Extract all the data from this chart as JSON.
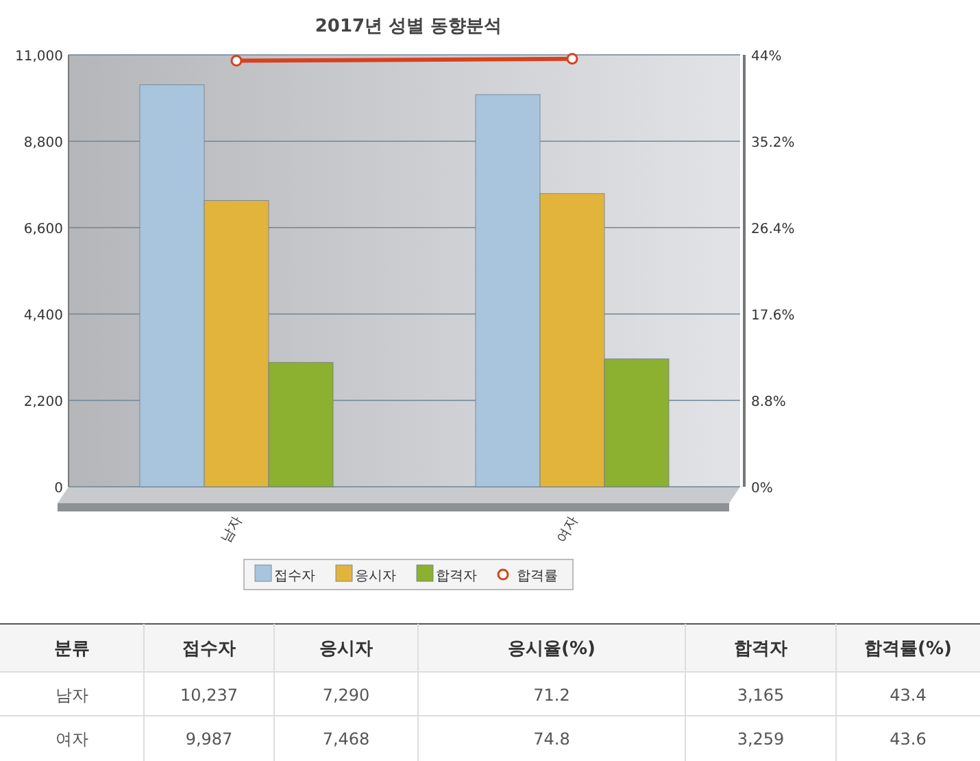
{
  "chart_data": [
    {
      "type": "bar",
      "title": "2017년 성별 동향분석",
      "categories": [
        "남자",
        "여자"
      ],
      "series": [
        {
          "name": "접수자",
          "color": "#a9c5dd",
          "values": [
            10237,
            9987
          ]
        },
        {
          "name": "응시자",
          "color": "#e2b43c",
          "values": [
            7290,
            7468
          ]
        },
        {
          "name": "합격자",
          "color": "#8cb030",
          "values": [
            3165,
            3259
          ]
        },
        {
          "name": "합격률",
          "type": "line",
          "axis": "y2",
          "color": "#d9401e",
          "values": [
            43.4,
            43.6
          ]
        }
      ],
      "ylim": [
        0,
        11000
      ],
      "yticks": [
        {
          "value": 0,
          "label": "0"
        },
        {
          "value": 2200,
          "label": "2,200"
        },
        {
          "value": 4400,
          "label": "4,400"
        },
        {
          "value": 6600,
          "label": "6,600"
        },
        {
          "value": 8800,
          "label": "8,800"
        },
        {
          "value": 11000,
          "label": "11,000"
        }
      ],
      "y2lim": [
        0,
        44
      ],
      "y2ticks": [
        {
          "value": 0,
          "label": "0%"
        },
        {
          "value": 8.8,
          "label": "8.8%"
        },
        {
          "value": 17.6,
          "label": "17.6%"
        },
        {
          "value": 26.4,
          "label": "26.4%"
        },
        {
          "value": 35.2,
          "label": "35.2%"
        },
        {
          "value": 44,
          "label": "44%"
        }
      ],
      "grid": "y",
      "legend": "bottom",
      "marker": "circle"
    },
    {
      "type": "other",
      "ylabel": "분류",
      "categories": [
        "남자",
        "여자"
      ],
      "data_labels": true,
      "series": [
        {
          "name": "접수자",
          "values": [
            10237,
            9987
          ],
          "value_labels": [
            "10,237",
            "9,987"
          ]
        },
        {
          "name": "응시자",
          "values": [
            7290,
            7468
          ],
          "value_labels": [
            "7,290",
            "7,468"
          ]
        },
        {
          "name": "응시율(%)",
          "values": [
            71.2,
            74.8
          ],
          "value_labels": [
            "71.2",
            "74.8"
          ]
        },
        {
          "name": "합격자",
          "values": [
            3165,
            3259
          ],
          "value_labels": [
            "3,165",
            "3,259"
          ]
        },
        {
          "name": "합격률(%)",
          "values": [
            43.4,
            43.6
          ],
          "value_labels": [
            "43.4",
            "43.6"
          ]
        }
      ]
    }
  ]
}
